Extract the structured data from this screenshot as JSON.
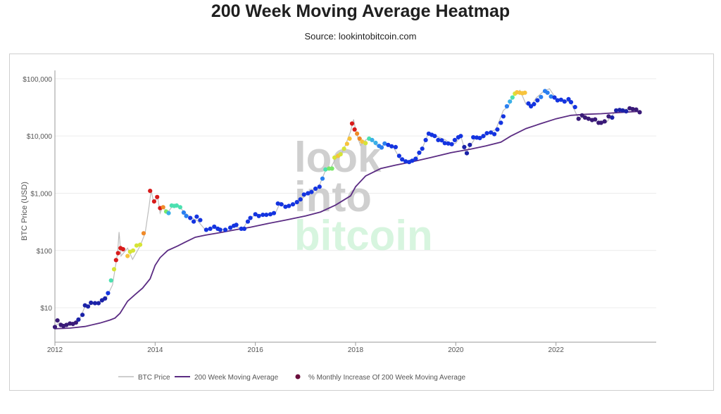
{
  "title": "200 Week Moving Average Heatmap",
  "subtitle": "Source: lookintobitcoin.com",
  "watermark": [
    "look",
    "into",
    "bitcoin"
  ],
  "chart_data": {
    "type": "scatter",
    "ylabel": "BTC Price (USD)",
    "yscale": "log",
    "ylim": [
      2.5,
      140000
    ],
    "xlim": [
      2012.0,
      2024.0
    ],
    "x_ticks": [
      2012,
      2014,
      2016,
      2018,
      2020,
      2022
    ],
    "x_tick_labels": [
      "2012",
      "2014",
      "2016",
      "2018",
      "2020",
      "2022"
    ],
    "y_ticks": [
      10,
      100,
      1000,
      10000,
      100000
    ],
    "y_tick_labels": [
      "$10",
      "$100",
      "$1,000",
      "$10,000",
      "$100,000"
    ],
    "grid": true,
    "legend_position": "bottom",
    "legend": [
      "BTC Price",
      "200 Week Moving Average",
      "% Monthly Increase Of 200 Week Moving Average"
    ],
    "colors": {
      "price": "#bdbdbd",
      "ma": "#5b2c83",
      "legend_dot": "#6a0e3c",
      "watermark_dark": "#cfcfcf",
      "watermark_green": "#d7f5df"
    },
    "heat_colors": [
      "#3a1a78",
      "#1b22a8",
      "#1434e0",
      "#2a7ff0",
      "#3ab0e8",
      "#4ce0b0",
      "#7ae86a",
      "#d6e436",
      "#f7c33c",
      "#f08a28",
      "#d81b1b"
    ],
    "price": [
      [
        2012.0,
        4.8
      ],
      [
        2012.1,
        5.5
      ],
      [
        2012.2,
        4.9
      ],
      [
        2012.4,
        5.2
      ],
      [
        2012.5,
        6.5
      ],
      [
        2012.6,
        10.5
      ],
      [
        2012.75,
        11.5
      ],
      [
        2012.9,
        13
      ],
      [
        2013.0,
        13.5
      ],
      [
        2013.15,
        25
      ],
      [
        2013.25,
        90
      ],
      [
        2013.28,
        210
      ],
      [
        2013.32,
        80
      ],
      [
        2013.45,
        110
      ],
      [
        2013.55,
        70
      ],
      [
        2013.7,
        120
      ],
      [
        2013.8,
        200
      ],
      [
        2013.88,
        600
      ],
      [
        2013.92,
        1130
      ],
      [
        2013.97,
        700
      ],
      [
        2014.05,
        850
      ],
      [
        2014.1,
        450
      ],
      [
        2014.15,
        580
      ],
      [
        2014.25,
        460
      ],
      [
        2014.35,
        600
      ],
      [
        2014.45,
        620
      ],
      [
        2014.55,
        500
      ],
      [
        2014.7,
        380
      ],
      [
        2014.85,
        330
      ],
      [
        2015.0,
        230
      ],
      [
        2015.2,
        250
      ],
      [
        2015.4,
        230
      ],
      [
        2015.6,
        260
      ],
      [
        2015.75,
        240
      ],
      [
        2015.85,
        330
      ],
      [
        2016.0,
        430
      ],
      [
        2016.2,
        420
      ],
      [
        2016.4,
        450
      ],
      [
        2016.5,
        700
      ],
      [
        2016.6,
        600
      ],
      [
        2016.8,
        650
      ],
      [
        2017.0,
        900
      ],
      [
        2017.1,
        1100
      ],
      [
        2017.25,
        1200
      ],
      [
        2017.4,
        2500
      ],
      [
        2017.5,
        2700
      ],
      [
        2017.6,
        4000
      ],
      [
        2017.7,
        4500
      ],
      [
        2017.8,
        7000
      ],
      [
        2017.9,
        12000
      ],
      [
        2017.96,
        19500
      ],
      [
        2018.0,
        13000
      ],
      [
        2018.05,
        9000
      ],
      [
        2018.1,
        6800
      ],
      [
        2018.2,
        8500
      ],
      [
        2018.3,
        9300
      ],
      [
        2018.4,
        7000
      ],
      [
        2018.5,
        6500
      ],
      [
        2018.6,
        7300
      ],
      [
        2018.75,
        6500
      ],
      [
        2018.9,
        3800
      ],
      [
        2019.0,
        3600
      ],
      [
        2019.2,
        4100
      ],
      [
        2019.3,
        5200
      ],
      [
        2019.45,
        11000
      ],
      [
        2019.6,
        10000
      ],
      [
        2019.8,
        8500
      ],
      [
        2019.9,
        7200
      ],
      [
        2020.0,
        7500
      ],
      [
        2020.1,
        10000
      ],
      [
        2020.2,
        5000
      ],
      [
        2020.3,
        7000
      ],
      [
        2020.4,
        9500
      ],
      [
        2020.55,
        9200
      ],
      [
        2020.65,
        11500
      ],
      [
        2020.8,
        13000
      ],
      [
        2020.95,
        28000
      ],
      [
        2021.05,
        33000
      ],
      [
        2021.15,
        50000
      ],
      [
        2021.28,
        63000
      ],
      [
        2021.4,
        36000
      ],
      [
        2021.5,
        33000
      ],
      [
        2021.6,
        46000
      ],
      [
        2021.75,
        60000
      ],
      [
        2021.87,
        67000
      ],
      [
        2022.0,
        45000
      ],
      [
        2022.15,
        43000
      ],
      [
        2022.3,
        38000
      ],
      [
        2022.45,
        20000
      ],
      [
        2022.6,
        22000
      ],
      [
        2022.75,
        19000
      ],
      [
        2022.9,
        16500
      ],
      [
        2023.0,
        17000
      ],
      [
        2023.2,
        28000
      ],
      [
        2023.3,
        29000
      ],
      [
        2023.5,
        30000
      ],
      [
        2023.6,
        29000
      ],
      [
        2023.7,
        26000
      ]
    ],
    "ma_200w": [
      [
        2012.0,
        4.3
      ],
      [
        2012.3,
        4.4
      ],
      [
        2012.6,
        4.7
      ],
      [
        2012.9,
        5.4
      ],
      [
        2013.1,
        6.1
      ],
      [
        2013.2,
        6.6
      ],
      [
        2013.3,
        8
      ],
      [
        2013.45,
        13
      ],
      [
        2013.6,
        17
      ],
      [
        2013.75,
        22
      ],
      [
        2013.9,
        32
      ],
      [
        2014.0,
        55
      ],
      [
        2014.1,
        75
      ],
      [
        2014.25,
        100
      ],
      [
        2014.45,
        120
      ],
      [
        2014.6,
        140
      ],
      [
        2014.8,
        170
      ],
      [
        2015.0,
        185
      ],
      [
        2015.3,
        205
      ],
      [
        2015.6,
        230
      ],
      [
        2015.9,
        255
      ],
      [
        2016.2,
        290
      ],
      [
        2016.6,
        340
      ],
      [
        2017.0,
        400
      ],
      [
        2017.3,
        470
      ],
      [
        2017.6,
        620
      ],
      [
        2017.9,
        900
      ],
      [
        2018.0,
        1300
      ],
      [
        2018.2,
        2000
      ],
      [
        2018.5,
        2700
      ],
      [
        2018.8,
        3100
      ],
      [
        2019.1,
        3500
      ],
      [
        2019.5,
        4200
      ],
      [
        2019.9,
        5100
      ],
      [
        2020.3,
        5900
      ],
      [
        2020.6,
        6700
      ],
      [
        2020.9,
        7800
      ],
      [
        2021.1,
        10000
      ],
      [
        2021.4,
        13500
      ],
      [
        2021.7,
        16500
      ],
      [
        2022.0,
        20000
      ],
      [
        2022.3,
        23000
      ],
      [
        2022.6,
        24000
      ],
      [
        2022.9,
        24500
      ],
      [
        2023.2,
        25500
      ],
      [
        2023.5,
        26500
      ],
      [
        2023.7,
        27000
      ]
    ],
    "points": [
      [
        2012.0,
        4.6,
        0
      ],
      [
        2012.05,
        6,
        0
      ],
      [
        2012.12,
        5,
        0
      ],
      [
        2012.17,
        4.8,
        0
      ],
      [
        2012.23,
        5,
        0
      ],
      [
        2012.3,
        5.3,
        0
      ],
      [
        2012.36,
        5.2,
        0
      ],
      [
        2012.42,
        5.5,
        0
      ],
      [
        2012.47,
        6.2,
        1
      ],
      [
        2012.55,
        7.5,
        1
      ],
      [
        2012.6,
        11,
        1
      ],
      [
        2012.66,
        10.5,
        1
      ],
      [
        2012.72,
        12.2,
        1
      ],
      [
        2012.8,
        12,
        1
      ],
      [
        2012.87,
        12,
        1
      ],
      [
        2012.94,
        13.5,
        1
      ],
      [
        2013.0,
        14.5,
        1
      ],
      [
        2013.06,
        18,
        2
      ],
      [
        2013.12,
        30,
        5
      ],
      [
        2013.18,
        47,
        7
      ],
      [
        2013.22,
        68,
        10
      ],
      [
        2013.26,
        90,
        10
      ],
      [
        2013.31,
        110,
        10
      ],
      [
        2013.36,
        105,
        10
      ],
      [
        2013.45,
        80,
        8
      ],
      [
        2013.5,
        95,
        7
      ],
      [
        2013.56,
        100,
        7
      ],
      [
        2013.63,
        122,
        7
      ],
      [
        2013.7,
        126,
        7
      ],
      [
        2013.77,
        200,
        9
      ],
      [
        2013.9,
        1100,
        10
      ],
      [
        2013.98,
        720,
        10
      ],
      [
        2014.04,
        860,
        10
      ],
      [
        2014.1,
        550,
        10
      ],
      [
        2014.16,
        570,
        9
      ],
      [
        2014.22,
        480,
        6
      ],
      [
        2014.27,
        450,
        4
      ],
      [
        2014.33,
        610,
        5
      ],
      [
        2014.38,
        600,
        5
      ],
      [
        2014.43,
        610,
        5
      ],
      [
        2014.5,
        570,
        5
      ],
      [
        2014.57,
        460,
        3
      ],
      [
        2014.62,
        400,
        3
      ],
      [
        2014.7,
        370,
        2
      ],
      [
        2014.77,
        320,
        2
      ],
      [
        2014.83,
        390,
        2
      ],
      [
        2014.9,
        340,
        2
      ],
      [
        2015.02,
        230,
        2
      ],
      [
        2015.1,
        240,
        2
      ],
      [
        2015.18,
        260,
        2
      ],
      [
        2015.25,
        240,
        2
      ],
      [
        2015.3,
        230,
        2
      ],
      [
        2015.4,
        230,
        2
      ],
      [
        2015.5,
        250,
        2
      ],
      [
        2015.57,
        270,
        2
      ],
      [
        2015.62,
        280,
        2
      ],
      [
        2015.72,
        240,
        2
      ],
      [
        2015.78,
        240,
        2
      ],
      [
        2015.85,
        320,
        2
      ],
      [
        2015.9,
        370,
        2
      ],
      [
        2016.0,
        430,
        2
      ],
      [
        2016.07,
        400,
        2
      ],
      [
        2016.15,
        420,
        2
      ],
      [
        2016.22,
        420,
        2
      ],
      [
        2016.3,
        430,
        2
      ],
      [
        2016.37,
        450,
        2
      ],
      [
        2016.45,
        660,
        2
      ],
      [
        2016.52,
        640,
        2
      ],
      [
        2016.6,
        580,
        2
      ],
      [
        2016.67,
        600,
        2
      ],
      [
        2016.75,
        640,
        2
      ],
      [
        2016.83,
        700,
        2
      ],
      [
        2016.9,
        780,
        2
      ],
      [
        2016.97,
        950,
        2
      ],
      [
        2017.05,
        1000,
        2
      ],
      [
        2017.12,
        1050,
        2
      ],
      [
        2017.2,
        1200,
        2
      ],
      [
        2017.28,
        1300,
        2
      ],
      [
        2017.34,
        1800,
        3
      ],
      [
        2017.4,
        2600,
        5
      ],
      [
        2017.47,
        2700,
        6
      ],
      [
        2017.53,
        2700,
        6
      ],
      [
        2017.58,
        4200,
        7
      ],
      [
        2017.65,
        4500,
        8
      ],
      [
        2017.7,
        4800,
        7
      ],
      [
        2017.77,
        6000,
        7
      ],
      [
        2017.83,
        7300,
        8
      ],
      [
        2017.88,
        9000,
        8
      ],
      [
        2017.93,
        16500,
        10
      ],
      [
        2017.98,
        13000,
        10
      ],
      [
        2018.03,
        11000,
        9
      ],
      [
        2018.08,
        9000,
        9
      ],
      [
        2018.13,
        8000,
        8
      ],
      [
        2018.2,
        7500,
        7
      ],
      [
        2018.27,
        9000,
        5
      ],
      [
        2018.33,
        8500,
        4
      ],
      [
        2018.4,
        7600,
        4
      ],
      [
        2018.47,
        6700,
        3
      ],
      [
        2018.52,
        6300,
        3
      ],
      [
        2018.58,
        7400,
        3
      ],
      [
        2018.65,
        7000,
        2
      ],
      [
        2018.72,
        6600,
        2
      ],
      [
        2018.8,
        6400,
        2
      ],
      [
        2018.87,
        4500,
        2
      ],
      [
        2018.93,
        3900,
        2
      ],
      [
        2019.0,
        3600,
        2
      ],
      [
        2019.07,
        3500,
        2
      ],
      [
        2019.13,
        3700,
        2
      ],
      [
        2019.2,
        4000,
        2
      ],
      [
        2019.27,
        5100,
        2
      ],
      [
        2019.33,
        6000,
        2
      ],
      [
        2019.4,
        8500,
        2
      ],
      [
        2019.46,
        11000,
        2
      ],
      [
        2019.52,
        10500,
        2
      ],
      [
        2019.58,
        10000,
        2
      ],
      [
        2019.65,
        8500,
        2
      ],
      [
        2019.72,
        8400,
        2
      ],
      [
        2019.78,
        7500,
        2
      ],
      [
        2019.85,
        7400,
        2
      ],
      [
        2019.92,
        7200,
        2
      ],
      [
        2019.98,
        8500,
        2
      ],
      [
        2020.05,
        9500,
        2
      ],
      [
        2020.1,
        10000,
        2
      ],
      [
        2020.17,
        6400,
        1
      ],
      [
        2020.22,
        5000,
        1
      ],
      [
        2020.28,
        7000,
        1
      ],
      [
        2020.35,
        9500,
        2
      ],
      [
        2020.42,
        9400,
        2
      ],
      [
        2020.48,
        9200,
        2
      ],
      [
        2020.55,
        10000,
        2
      ],
      [
        2020.62,
        11200,
        2
      ],
      [
        2020.7,
        11500,
        2
      ],
      [
        2020.77,
        10800,
        2
      ],
      [
        2020.83,
        13000,
        2
      ],
      [
        2020.9,
        17000,
        2
      ],
      [
        2020.95,
        22000,
        2
      ],
      [
        2021.02,
        33000,
        3
      ],
      [
        2021.08,
        40000,
        4
      ],
      [
        2021.13,
        47000,
        5
      ],
      [
        2021.18,
        55000,
        7
      ],
      [
        2021.22,
        58000,
        8
      ],
      [
        2021.28,
        57000,
        8
      ],
      [
        2021.33,
        56000,
        8
      ],
      [
        2021.38,
        57000,
        8
      ],
      [
        2021.45,
        37000,
        2
      ],
      [
        2021.5,
        33000,
        2
      ],
      [
        2021.56,
        36000,
        2
      ],
      [
        2021.63,
        42000,
        2
      ],
      [
        2021.7,
        48000,
        3
      ],
      [
        2021.78,
        61000,
        3
      ],
      [
        2021.83,
        57000,
        3
      ],
      [
        2021.9,
        49000,
        3
      ],
      [
        2021.97,
        47000,
        2
      ],
      [
        2022.03,
        42000,
        2
      ],
      [
        2022.1,
        43000,
        2
      ],
      [
        2022.17,
        40000,
        2
      ],
      [
        2022.25,
        44000,
        2
      ],
      [
        2022.3,
        39000,
        2
      ],
      [
        2022.38,
        32000,
        2
      ],
      [
        2022.45,
        20000,
        0
      ],
      [
        2022.52,
        23000,
        0
      ],
      [
        2022.58,
        21000,
        0
      ],
      [
        2022.65,
        20000,
        0
      ],
      [
        2022.72,
        19000,
        0
      ],
      [
        2022.78,
        19500,
        0
      ],
      [
        2022.85,
        17000,
        0
      ],
      [
        2022.9,
        17000,
        0
      ],
      [
        2022.97,
        18000,
        0
      ],
      [
        2023.05,
        22000,
        0
      ],
      [
        2023.12,
        21000,
        1
      ],
      [
        2023.2,
        28000,
        1
      ],
      [
        2023.27,
        28500,
        1
      ],
      [
        2023.33,
        28000,
        1
      ],
      [
        2023.4,
        27000,
        1
      ],
      [
        2023.47,
        30500,
        0
      ],
      [
        2023.53,
        29500,
        0
      ],
      [
        2023.6,
        29000,
        0
      ],
      [
        2023.67,
        26000,
        0
      ]
    ]
  }
}
